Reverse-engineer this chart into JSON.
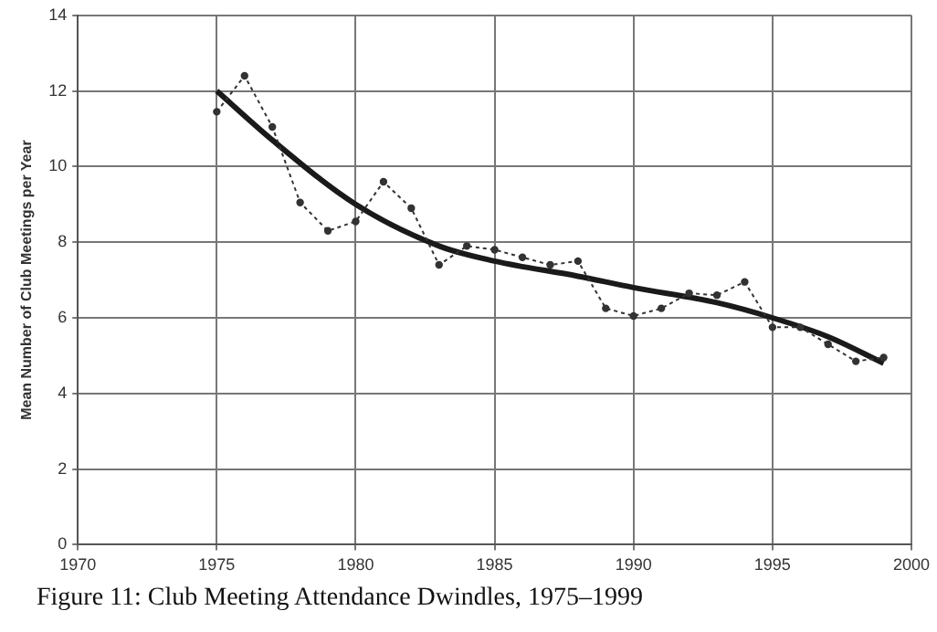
{
  "chart_data": {
    "type": "line",
    "title": "Figure 11: Club Meeting Attendance Dwindles, 1975–1999",
    "ylabel": "Mean Number of Club Meetings per Year",
    "series": [
      {
        "color": "#333333",
        "line_style": "dotted",
        "marker": "circle",
        "x": [
          1975,
          1976,
          1977,
          1978,
          1979,
          1980,
          1981,
          1982,
          1983,
          1984,
          1985,
          1986,
          1987,
          1988,
          1989,
          1990,
          1991,
          1992,
          1993,
          1994,
          1995,
          1996,
          1997,
          1998,
          1999
        ],
        "values": [
          11.45,
          12.4,
          11.05,
          9.05,
          8.3,
          8.55,
          9.6,
          8.9,
          7.4,
          7.9,
          7.8,
          7.6,
          7.4,
          7.5,
          6.25,
          6.05,
          6.25,
          6.65,
          6.6,
          6.95,
          5.75,
          5.75,
          5.3,
          4.85,
          4.95
        ]
      },
      {
        "color": "#1a1a1a",
        "line_style": "solid",
        "marker": "none",
        "x": [
          1975,
          1977,
          1980,
          1983,
          1985,
          1988,
          1990,
          1993,
          1995,
          1997,
          1999
        ],
        "values": [
          12.0,
          10.7,
          9.0,
          7.9,
          7.5,
          7.1,
          6.8,
          6.4,
          6.0,
          5.5,
          4.8
        ]
      }
    ],
    "xlim": [
      1970,
      2000
    ],
    "xticks": [
      1970,
      1975,
      1980,
      1985,
      1990,
      1995,
      2000
    ],
    "ylim": [
      0,
      14
    ],
    "yticks": [
      0,
      2,
      4,
      6,
      8,
      10,
      12,
      14
    ],
    "grid": true,
    "legend": false
  }
}
